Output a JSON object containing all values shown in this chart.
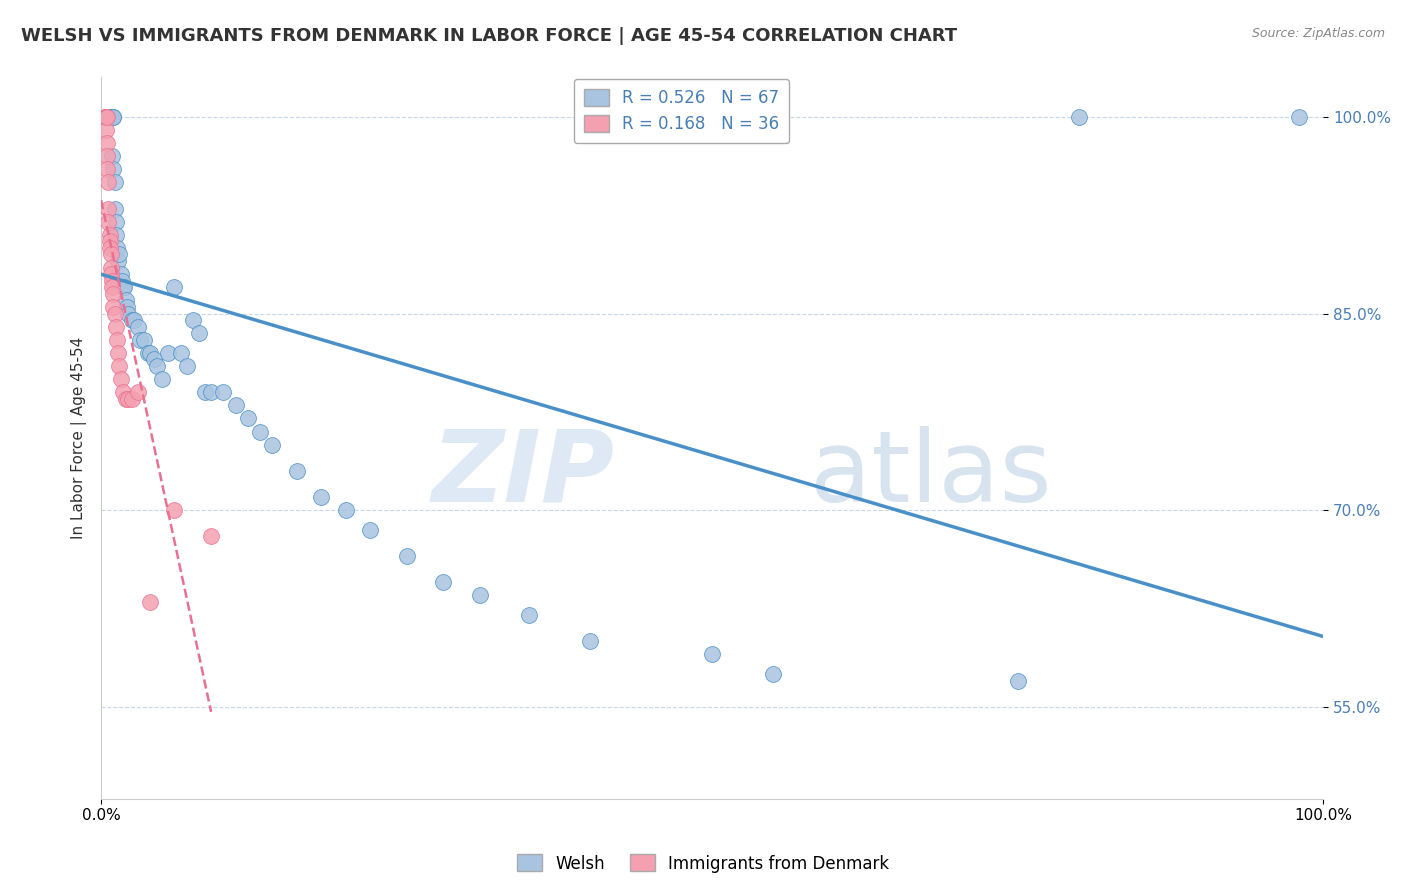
{
  "title": "WELSH VS IMMIGRANTS FROM DENMARK IN LABOR FORCE | AGE 45-54 CORRELATION CHART",
  "source": "Source: ZipAtlas.com",
  "ylabel": "In Labor Force | Age 45-54",
  "xlim": [
    0.0,
    1.0
  ],
  "ylim": [
    0.48,
    1.03
  ],
  "yticks": [
    0.55,
    0.7,
    0.85,
    1.0
  ],
  "ytick_labels": [
    "55.0%",
    "70.0%",
    "85.0%",
    "100.0%"
  ],
  "xtick_labels": [
    "0.0%",
    "100.0%"
  ],
  "blue_R": 0.526,
  "blue_N": 67,
  "pink_R": 0.168,
  "pink_N": 36,
  "blue_color": "#a8c4e0",
  "pink_color": "#f4a0b0",
  "blue_line_color": "#4a90c8",
  "pink_line_color": "#e87090",
  "legend_label_blue": "Welsh",
  "legend_label_pink": "Immigrants from Denmark",
  "watermark_zip": "ZIP",
  "watermark_atlas": "atlas",
  "title_fontsize": 13,
  "axis_label_fontsize": 11,
  "tick_fontsize": 11,
  "blue_x": [
    0.004,
    0.005,
    0.005,
    0.006,
    0.006,
    0.007,
    0.007,
    0.008,
    0.008,
    0.008,
    0.009,
    0.009,
    0.009,
    0.01,
    0.01,
    0.01,
    0.011,
    0.011,
    0.012,
    0.012,
    0.013,
    0.014,
    0.015,
    0.016,
    0.017,
    0.018,
    0.019,
    0.02,
    0.021,
    0.022,
    0.025,
    0.027,
    0.03,
    0.032,
    0.035,
    0.038,
    0.04,
    0.043,
    0.046,
    0.05,
    0.055,
    0.06,
    0.065,
    0.07,
    0.075,
    0.08,
    0.085,
    0.09,
    0.1,
    0.11,
    0.12,
    0.13,
    0.14,
    0.16,
    0.18,
    0.2,
    0.22,
    0.25,
    0.28,
    0.31,
    0.35,
    0.4,
    0.5,
    0.55,
    0.75,
    0.8,
    0.98
  ],
  "blue_y": [
    1.0,
    1.0,
    1.0,
    1.0,
    1.0,
    1.0,
    1.0,
    1.0,
    1.0,
    1.0,
    1.0,
    1.0,
    0.97,
    1.0,
    1.0,
    0.96,
    0.95,
    0.93,
    0.92,
    0.91,
    0.9,
    0.89,
    0.895,
    0.88,
    0.875,
    0.87,
    0.87,
    0.86,
    0.855,
    0.85,
    0.845,
    0.845,
    0.84,
    0.83,
    0.83,
    0.82,
    0.82,
    0.815,
    0.81,
    0.8,
    0.82,
    0.87,
    0.82,
    0.81,
    0.845,
    0.835,
    0.79,
    0.79,
    0.79,
    0.78,
    0.77,
    0.76,
    0.75,
    0.73,
    0.71,
    0.7,
    0.685,
    0.665,
    0.645,
    0.635,
    0.62,
    0.6,
    0.59,
    0.575,
    0.57,
    1.0,
    1.0
  ],
  "pink_x": [
    0.003,
    0.003,
    0.004,
    0.004,
    0.004,
    0.005,
    0.005,
    0.005,
    0.005,
    0.006,
    0.006,
    0.006,
    0.007,
    0.007,
    0.007,
    0.008,
    0.008,
    0.008,
    0.009,
    0.009,
    0.01,
    0.01,
    0.011,
    0.012,
    0.013,
    0.014,
    0.015,
    0.016,
    0.018,
    0.02,
    0.022,
    0.025,
    0.03,
    0.04,
    0.06,
    0.09
  ],
  "pink_y": [
    1.0,
    1.0,
    1.0,
    1.0,
    0.99,
    1.0,
    0.98,
    0.97,
    0.96,
    0.95,
    0.93,
    0.92,
    0.91,
    0.905,
    0.9,
    0.895,
    0.885,
    0.88,
    0.875,
    0.87,
    0.865,
    0.855,
    0.85,
    0.84,
    0.83,
    0.82,
    0.81,
    0.8,
    0.79,
    0.785,
    0.785,
    0.785,
    0.79,
    0.63,
    0.7,
    0.68
  ]
}
